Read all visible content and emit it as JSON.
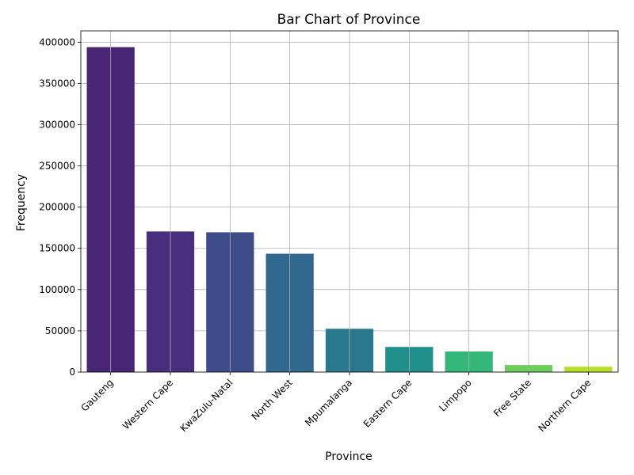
{
  "chart_data": {
    "type": "bar",
    "title": "Bar Chart of Province",
    "xlabel": "Province",
    "ylabel": "Frequency",
    "categories": [
      "Gauteng",
      "Western Cape",
      "KwaZulu-Natal",
      "North West",
      "Mpumalanga",
      "Eastern Cape",
      "Limpopo",
      "Free State",
      "Northern Cape"
    ],
    "values": [
      394000,
      170500,
      169500,
      143500,
      52500,
      30500,
      25000,
      8500,
      6500
    ],
    "colors": [
      "#482575",
      "#472f7d",
      "#3e4c8a",
      "#31688e",
      "#2a788e",
      "#21908d",
      "#35b779",
      "#6ccd5a",
      "#b8de29"
    ],
    "ylim": [
      0,
      413700
    ],
    "yticks": [
      0,
      50000,
      100000,
      150000,
      200000,
      250000,
      300000,
      350000,
      400000
    ],
    "grid": true,
    "x_tick_rotation": 45
  }
}
